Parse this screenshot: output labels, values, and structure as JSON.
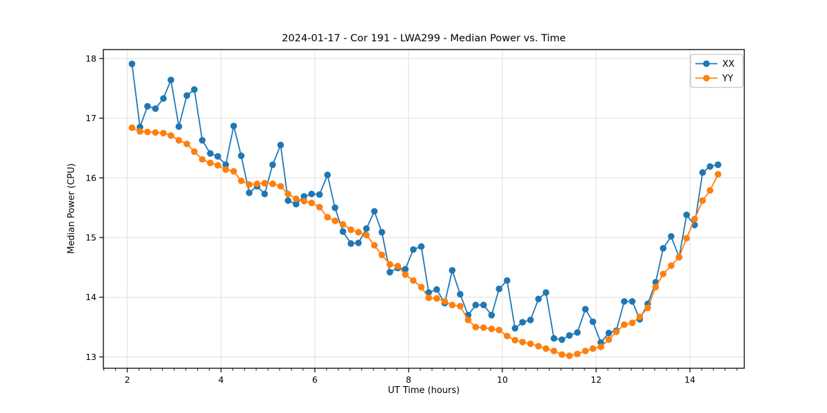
{
  "title": "2024-01-17 - Cor 191 - LWA299 - Median Power vs. Time",
  "axes": {
    "xlabel": "UT Time (hours)",
    "ylabel": "Median Power (CPU)"
  },
  "legend": {
    "position": "upper right",
    "entries": [
      {
        "label": "XX",
        "color": "#1f77b4"
      },
      {
        "label": "YY",
        "color": "#ff7f0e"
      }
    ]
  },
  "chart_data": {
    "type": "line",
    "title": "2024-01-17 - Cor 191 - LWA299 - Median Power vs. Time",
    "xlabel": "UT Time (hours)",
    "ylabel": "Median Power (CPU)",
    "xlim": [
      1.49,
      15.16
    ],
    "ylim": [
      12.81,
      18.15
    ],
    "x_ticks": [
      2,
      4,
      6,
      8,
      10,
      12,
      14
    ],
    "y_ticks": [
      13,
      14,
      15,
      16,
      17,
      18
    ],
    "x_minor_tick_step": 0.25,
    "grid": true,
    "grid_color": "#dedede",
    "marker": "circle",
    "legend_position": "upper right",
    "x": [
      2.1,
      2.27,
      2.43,
      2.6,
      2.77,
      2.93,
      3.1,
      3.27,
      3.43,
      3.6,
      3.77,
      3.93,
      4.1,
      4.27,
      4.43,
      4.6,
      4.77,
      4.93,
      5.1,
      5.27,
      5.43,
      5.6,
      5.77,
      5.93,
      6.1,
      6.27,
      6.43,
      6.6,
      6.77,
      6.93,
      7.1,
      7.27,
      7.43,
      7.6,
      7.77,
      7.93,
      8.1,
      8.27,
      8.43,
      8.6,
      8.77,
      8.93,
      9.1,
      9.27,
      9.43,
      9.6,
      9.77,
      9.93,
      10.1,
      10.27,
      10.43,
      10.6,
      10.77,
      10.93,
      11.1,
      11.27,
      11.43,
      11.6,
      11.77,
      11.93,
      12.1,
      12.27,
      12.43,
      12.6,
      12.77,
      12.93,
      13.1,
      13.27,
      13.43,
      13.6,
      13.77,
      13.93,
      14.1,
      14.27,
      14.43,
      14.6
    ],
    "series": [
      {
        "name": "XX",
        "color": "#1f77b4",
        "values": [
          17.91,
          16.85,
          17.2,
          17.16,
          17.33,
          17.64,
          16.86,
          17.38,
          17.48,
          16.63,
          16.41,
          16.36,
          16.22,
          16.87,
          16.37,
          15.75,
          15.86,
          15.73,
          16.22,
          16.55,
          15.62,
          15.56,
          15.69,
          15.73,
          15.72,
          16.05,
          15.5,
          15.1,
          14.9,
          14.91,
          15.15,
          15.44,
          15.09,
          14.42,
          14.49,
          14.47,
          14.8,
          14.85,
          14.08,
          14.13,
          13.9,
          14.45,
          14.05,
          13.7,
          13.87,
          13.87,
          13.7,
          14.14,
          14.28,
          13.48,
          13.58,
          13.62,
          13.97,
          14.08,
          13.31,
          13.29,
          13.36,
          13.41,
          13.8,
          13.59,
          13.24,
          13.4,
          13.44,
          13.93,
          13.93,
          13.63,
          13.89,
          14.25,
          14.82,
          15.02,
          14.67,
          15.38,
          15.21,
          16.09,
          16.19,
          16.22
        ]
      },
      {
        "name": "YY",
        "color": "#ff7f0e",
        "values": [
          16.84,
          16.78,
          16.77,
          16.76,
          16.75,
          16.71,
          16.63,
          16.57,
          16.44,
          16.31,
          16.25,
          16.21,
          16.14,
          16.11,
          15.95,
          15.89,
          15.9,
          15.91,
          15.9,
          15.86,
          15.73,
          15.65,
          15.61,
          15.58,
          15.51,
          15.34,
          15.28,
          15.22,
          15.13,
          15.09,
          15.04,
          14.87,
          14.71,
          14.55,
          14.52,
          14.38,
          14.28,
          14.17,
          13.99,
          13.98,
          13.93,
          13.87,
          13.85,
          13.62,
          13.5,
          13.49,
          13.47,
          13.45,
          13.35,
          13.28,
          13.25,
          13.22,
          13.18,
          13.14,
          13.1,
          13.04,
          13.02,
          13.05,
          13.1,
          13.14,
          13.17,
          13.29,
          13.42,
          13.54,
          13.57,
          13.67,
          13.82,
          14.17,
          14.39,
          14.53,
          14.67,
          14.99,
          15.31,
          15.62,
          15.79,
          16.06
        ]
      }
    ]
  }
}
